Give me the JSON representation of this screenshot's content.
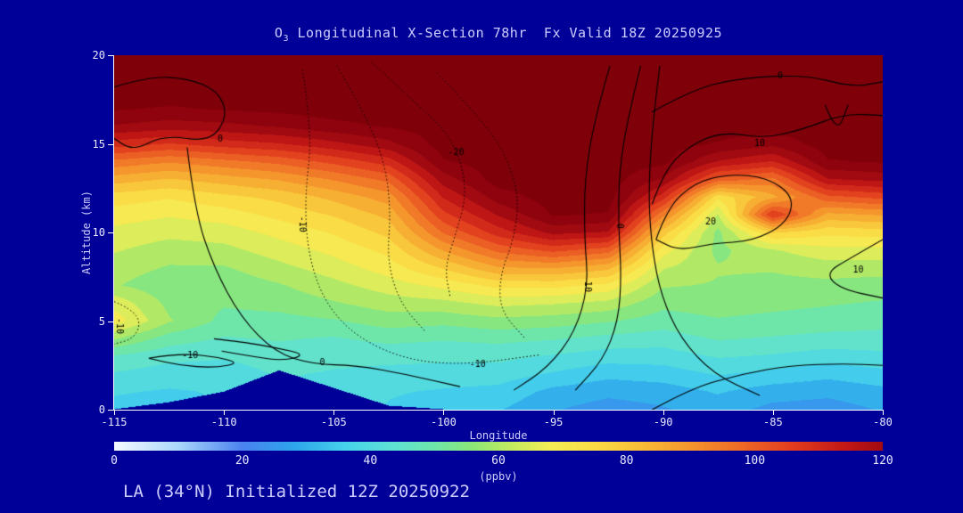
{
  "page": {
    "bg": "#000099",
    "tick_text": "#e8e8ff",
    "label_text": "#ccccff"
  },
  "header": {
    "title_prefix": "O",
    "title_sub": "3",
    "title_rest": " Longitudinal X-Section 78hr  Fx Valid 18Z 20250925"
  },
  "footer": {
    "text": "LA (34°N) Initialized 12Z 20250922"
  },
  "chart_data": {
    "type": "heatmap",
    "title": "O3 Longitudinal X-Section 78hr Fx Valid 18Z 20250925",
    "xlabel": "Longitude",
    "ylabel": "Altitude (km)",
    "xlim": [
      -115,
      -80
    ],
    "ylim": [
      0,
      20
    ],
    "x_ticks": [
      -115,
      -110,
      -105,
      -100,
      -95,
      -90,
      -85,
      -80
    ],
    "y_ticks": [
      0,
      5,
      10,
      15,
      20
    ],
    "grid": false,
    "colorbar": {
      "min": 0,
      "max": 120,
      "ticks": [
        0,
        20,
        40,
        60,
        80,
        100,
        120
      ],
      "label": "(ppbv)",
      "position": "bottom"
    },
    "quantize_step": 5,
    "colormap": [
      [
        0,
        [
          245,
          250,
          255
        ]
      ],
      [
        10,
        [
          170,
          215,
          250
        ]
      ],
      [
        20,
        [
          75,
          130,
          240
        ]
      ],
      [
        28,
        [
          45,
          165,
          235
        ]
      ],
      [
        36,
        [
          70,
          210,
          235
        ]
      ],
      [
        44,
        [
          95,
          225,
          210
        ]
      ],
      [
        50,
        [
          110,
          230,
          170
        ]
      ],
      [
        56,
        [
          140,
          230,
          120
        ]
      ],
      [
        62,
        [
          195,
          235,
          95
        ]
      ],
      [
        68,
        [
          245,
          238,
          85
        ]
      ],
      [
        75,
        [
          250,
          220,
          70
        ]
      ],
      [
        82,
        [
          248,
          190,
          55
        ]
      ],
      [
        90,
        [
          245,
          150,
          45
        ]
      ],
      [
        98,
        [
          238,
          105,
          38
        ]
      ],
      [
        106,
        [
          225,
          60,
          30
        ]
      ],
      [
        114,
        [
          195,
          25,
          22
        ]
      ],
      [
        122,
        [
          150,
          5,
          15
        ]
      ],
      [
        130,
        [
          128,
          0,
          10
        ]
      ]
    ],
    "lons": [
      -115,
      -112.5,
      -110,
      -107.5,
      -105,
      -102.5,
      -100,
      -97.5,
      -95,
      -92.5,
      -90,
      -87.5,
      -85,
      -82.5,
      -80
    ],
    "alts": [
      0,
      1,
      2,
      3,
      4,
      5,
      6,
      7,
      8,
      9,
      10,
      11,
      12,
      13,
      14,
      15,
      16,
      17,
      18,
      19,
      20
    ],
    "terrain_alt_km": [
      0,
      0.4,
      1.0,
      2.2,
      1.2,
      0.2,
      0,
      0,
      0,
      0,
      0,
      0,
      0,
      0,
      0
    ],
    "values": [
      [
        36,
        35,
        38,
        42,
        41,
        37,
        35,
        33,
        28,
        25,
        27,
        30,
        26,
        25,
        28
      ],
      [
        38,
        37,
        38,
        42,
        41,
        38,
        37,
        36,
        31,
        29,
        30,
        33,
        30,
        29,
        31
      ],
      [
        42,
        40,
        40,
        43,
        42,
        41,
        40,
        40,
        37,
        34,
        35,
        38,
        36,
        34,
        36
      ],
      [
        47,
        44,
        43,
        45,
        44,
        44,
        44,
        44,
        42,
        40,
        40,
        43,
        42,
        40,
        41
      ],
      [
        58,
        50,
        47,
        48,
        47,
        49,
        48,
        49,
        48,
        46,
        45,
        48,
        47,
        46,
        46
      ],
      [
        70,
        58,
        51,
        51,
        52,
        55,
        54,
        56,
        55,
        53,
        50,
        52,
        51,
        50,
        49
      ],
      [
        66,
        56,
        53,
        54,
        57,
        60,
        61,
        64,
        63,
        61,
        54,
        55,
        54,
        53,
        52
      ],
      [
        58,
        54,
        54,
        57,
        61,
        65,
        69,
        74,
        74,
        71,
        58,
        57,
        56,
        56,
        55
      ],
      [
        60,
        57,
        57,
        61,
        65,
        70,
        78,
        87,
        88,
        84,
        63,
        58,
        58,
        60,
        60
      ],
      [
        63,
        60,
        61,
        65,
        69,
        74,
        88,
        99,
        104,
        100,
        70,
        56,
        62,
        66,
        66
      ],
      [
        66,
        64,
        65,
        69,
        73,
        79,
        98,
        110,
        119,
        117,
        80,
        56,
        78,
        74,
        75
      ],
      [
        70,
        68,
        70,
        74,
        78,
        84,
        106,
        118,
        128,
        127,
        94,
        62,
        108,
        86,
        88
      ],
      [
        75,
        73,
        76,
        79,
        84,
        90,
        113,
        125,
        130,
        130,
        110,
        74,
        86,
        101,
        104
      ],
      [
        85,
        82,
        85,
        88,
        93,
        99,
        120,
        130,
        130,
        130,
        122,
        100,
        96,
        117,
        119
      ],
      [
        96,
        93,
        96,
        99,
        104,
        110,
        127,
        130,
        130,
        130,
        129,
        117,
        112,
        127,
        128
      ],
      [
        110,
        107,
        110,
        112,
        116,
        121,
        130,
        130,
        130,
        130,
        130,
        127,
        124,
        130,
        130
      ],
      [
        122,
        120,
        121,
        123,
        126,
        128,
        130,
        130,
        130,
        130,
        130,
        130,
        130,
        130,
        130
      ],
      [
        128,
        127,
        128,
        129,
        130,
        130,
        130,
        130,
        130,
        130,
        130,
        130,
        130,
        130,
        130
      ],
      [
        130,
        130,
        130,
        130,
        130,
        130,
        130,
        130,
        130,
        130,
        130,
        130,
        130,
        130,
        130
      ],
      [
        130,
        130,
        130,
        130,
        130,
        130,
        130,
        130,
        130,
        130,
        130,
        130,
        130,
        130,
        130
      ],
      [
        130,
        130,
        130,
        130,
        130,
        130,
        130,
        130,
        130,
        130,
        130,
        130,
        130,
        130,
        130
      ]
    ],
    "overlay_contours": [
      {
        "style": "solid",
        "labels": [
          {
            "text": "0",
            "fx": 0.138,
            "fy": 0.236,
            "rot": 0
          }
        ],
        "points": [
          [
            0,
            0.09
          ],
          [
            0.045,
            0.06
          ],
          [
            0.095,
            0.065
          ],
          [
            0.135,
            0.1
          ],
          [
            0.148,
            0.17
          ],
          [
            0.125,
            0.245
          ],
          [
            0.065,
            0.225
          ],
          [
            0.025,
            0.27
          ],
          [
            0,
            0.235
          ]
        ]
      },
      {
        "style": "solid",
        "labels": [
          {
            "text": "0",
            "fx": 0.271,
            "fy": 0.869,
            "rot": 0
          }
        ],
        "points": [
          [
            0.095,
            0.26
          ],
          [
            0.105,
            0.44
          ],
          [
            0.13,
            0.6
          ],
          [
            0.165,
            0.74
          ],
          [
            0.21,
            0.84
          ],
          [
            0.26,
            0.872
          ],
          [
            0.315,
            0.875
          ],
          [
            0.38,
            0.9
          ],
          [
            0.45,
            0.935
          ]
        ]
      },
      {
        "style": "dotted",
        "labels": [
          {
            "text": "-10",
            "fx": 0.244,
            "fy": 0.477,
            "rot": 90
          },
          {
            "text": "-10",
            "fx": 0.473,
            "fy": 0.874,
            "rot": 0
          }
        ],
        "points": [
          [
            0.245,
            0.04
          ],
          [
            0.258,
            0.22
          ],
          [
            0.248,
            0.4
          ],
          [
            0.252,
            0.56
          ],
          [
            0.274,
            0.7
          ],
          [
            0.318,
            0.8
          ],
          [
            0.385,
            0.862
          ],
          [
            0.46,
            0.873
          ],
          [
            0.555,
            0.845
          ]
        ]
      },
      {
        "style": "dotted",
        "labels": [
          {
            "text": "-20",
            "fx": 0.445,
            "fy": 0.276,
            "rot": 0
          }
        ],
        "points": [
          [
            0.335,
            0.02
          ],
          [
            0.385,
            0.12
          ],
          [
            0.43,
            0.21
          ],
          [
            0.452,
            0.3
          ],
          [
            0.458,
            0.4
          ],
          [
            0.445,
            0.5
          ],
          [
            0.43,
            0.6
          ],
          [
            0.437,
            0.68
          ]
        ]
      },
      {
        "style": "dotted",
        "labels": [],
        "points": [
          [
            0.29,
            0.03
          ],
          [
            0.325,
            0.16
          ],
          [
            0.352,
            0.3
          ],
          [
            0.36,
            0.44
          ],
          [
            0.355,
            0.58
          ],
          [
            0.372,
            0.7
          ],
          [
            0.405,
            0.78
          ]
        ]
      },
      {
        "style": "dotted",
        "labels": [],
        "points": [
          [
            0.42,
            0.05
          ],
          [
            0.47,
            0.16
          ],
          [
            0.51,
            0.28
          ],
          [
            0.527,
            0.4
          ],
          [
            0.52,
            0.52
          ],
          [
            0.502,
            0.62
          ],
          [
            0.502,
            0.72
          ],
          [
            0.535,
            0.8
          ]
        ]
      },
      {
        "style": "solid",
        "labels": [
          {
            "text": "10",
            "fx": 0.615,
            "fy": 0.653,
            "rot": 90
          }
        ],
        "points": [
          [
            0.645,
            0.03
          ],
          [
            0.625,
            0.18
          ],
          [
            0.612,
            0.35
          ],
          [
            0.612,
            0.52
          ],
          [
            0.617,
            0.65
          ],
          [
            0.6,
            0.78
          ],
          [
            0.565,
            0.88
          ],
          [
            0.52,
            0.945
          ]
        ]
      },
      {
        "style": "solid",
        "labels": [
          {
            "text": "0",
            "fx": 0.657,
            "fy": 0.482,
            "rot": 90
          }
        ],
        "points": [
          [
            0.685,
            0.03
          ],
          [
            0.668,
            0.18
          ],
          [
            0.657,
            0.33
          ],
          [
            0.656,
            0.48
          ],
          [
            0.66,
            0.62
          ],
          [
            0.656,
            0.75
          ],
          [
            0.636,
            0.86
          ],
          [
            0.6,
            0.945
          ]
        ]
      },
      {
        "style": "solid",
        "labels": [],
        "points": [
          [
            0.71,
            0.03
          ],
          [
            0.7,
            0.2
          ],
          [
            0.695,
            0.4
          ],
          [
            0.7,
            0.55
          ],
          [
            0.712,
            0.68
          ],
          [
            0.737,
            0.8
          ],
          [
            0.78,
            0.9
          ],
          [
            0.84,
            0.96
          ]
        ]
      },
      {
        "style": "solid",
        "labels": [
          {
            "text": "20",
            "fx": 0.776,
            "fy": 0.472,
            "rot": 0
          }
        ],
        "points": [
          [
            0.705,
            0.52
          ],
          [
            0.72,
            0.43
          ],
          [
            0.755,
            0.36
          ],
          [
            0.8,
            0.335
          ],
          [
            0.85,
            0.345
          ],
          [
            0.885,
            0.4
          ],
          [
            0.875,
            0.475
          ],
          [
            0.83,
            0.525
          ],
          [
            0.78,
            0.53
          ],
          [
            0.735,
            0.552
          ],
          [
            0.705,
            0.52
          ]
        ]
      },
      {
        "style": "solid",
        "labels": [
          {
            "text": "10",
            "fx": 0.84,
            "fy": 0.251,
            "rot": 0
          }
        ],
        "points": [
          [
            0.7,
            0.42
          ],
          [
            0.715,
            0.33
          ],
          [
            0.745,
            0.26
          ],
          [
            0.79,
            0.215
          ],
          [
            0.845,
            0.235
          ],
          [
            0.895,
            0.21
          ],
          [
            0.95,
            0.165
          ],
          [
            1.0,
            0.17
          ]
        ]
      },
      {
        "style": "solid",
        "labels": [
          {
            "text": "-0",
            "fx": 0.863,
            "fy": 0.058,
            "rot": 0
          }
        ],
        "points": [
          [
            0.7,
            0.16
          ],
          [
            0.75,
            0.1
          ],
          [
            0.81,
            0.065
          ],
          [
            0.9,
            0.055
          ],
          [
            0.96,
            0.09
          ],
          [
            1.0,
            0.075
          ]
        ]
      },
      {
        "style": "solid",
        "labels": [],
        "points": [
          [
            0.925,
            0.14
          ],
          [
            0.94,
            0.225
          ],
          [
            0.955,
            0.14
          ]
        ]
      },
      {
        "style": "solid",
        "labels": [
          {
            "text": "10",
            "fx": 0.968,
            "fy": 0.606,
            "rot": 0
          }
        ],
        "points": [
          [
            1.0,
            0.52
          ],
          [
            0.96,
            0.57
          ],
          [
            0.925,
            0.615
          ],
          [
            0.945,
            0.66
          ],
          [
            1.0,
            0.685
          ]
        ]
      },
      {
        "style": "solid",
        "labels": [],
        "points": [
          [
            0.7,
            1.0
          ],
          [
            0.75,
            0.94
          ],
          [
            0.815,
            0.9
          ],
          [
            0.88,
            0.875
          ],
          [
            0.95,
            0.87
          ],
          [
            1.0,
            0.875
          ]
        ]
      },
      {
        "style": "dotted",
        "labels": [
          {
            "text": "-10",
            "fx": 0.006,
            "fy": 0.764,
            "rot": 90
          }
        ],
        "points": [
          [
            0,
            0.695
          ],
          [
            0.022,
            0.715
          ],
          [
            0.035,
            0.755
          ],
          [
            0.025,
            0.8
          ],
          [
            0,
            0.815
          ]
        ]
      },
      {
        "style": "solid",
        "labels": [
          {
            "text": "-10",
            "fx": 0.099,
            "fy": 0.849,
            "rot": 0
          }
        ],
        "points": [
          [
            0.045,
            0.855
          ],
          [
            0.08,
            0.842
          ],
          [
            0.125,
            0.848
          ],
          [
            0.165,
            0.868
          ],
          [
            0.13,
            0.882
          ],
          [
            0.085,
            0.875
          ],
          [
            0.045,
            0.855
          ]
        ]
      },
      {
        "style": "solid",
        "labels": [],
        "points": [
          [
            0.13,
            0.8
          ],
          [
            0.17,
            0.81
          ],
          [
            0.21,
            0.825
          ],
          [
            0.25,
            0.845
          ],
          [
            0.22,
            0.862
          ],
          [
            0.18,
            0.85
          ],
          [
            0.14,
            0.835
          ]
        ]
      }
    ]
  }
}
